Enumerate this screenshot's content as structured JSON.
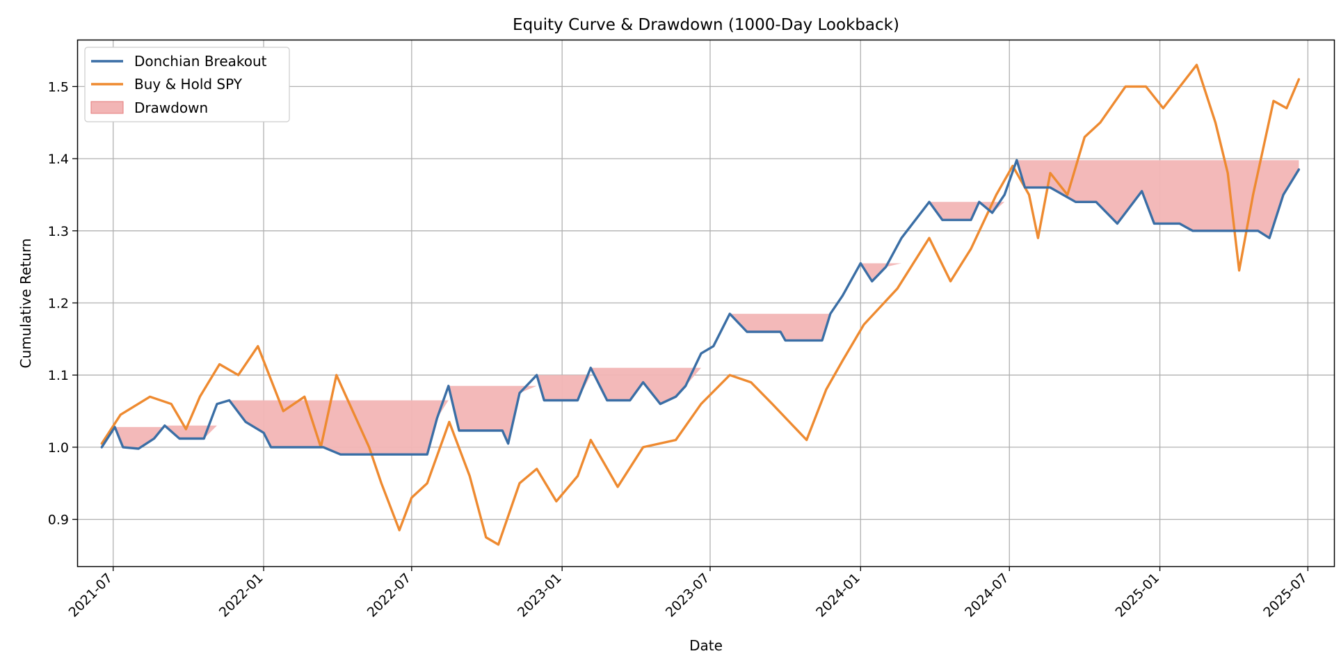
{
  "chart_data": {
    "type": "line",
    "title": "Equity Curve & Drawdown (1000-Day Lookback)",
    "xlabel": "Date",
    "ylabel": "Cumulative Return",
    "xlim": [
      "2021-05-18",
      "2025-08-02"
    ],
    "ylim": [
      0.835,
      1.565
    ],
    "x_ticks": [
      "2021-07",
      "2022-01",
      "2022-07",
      "2023-01",
      "2023-07",
      "2024-01",
      "2024-07",
      "2025-01",
      "2025-07"
    ],
    "y_ticks": [
      0.9,
      1.0,
      1.1,
      1.2,
      1.3,
      1.4,
      1.5
    ],
    "y_tick_labels": [
      "0.9",
      "1.0",
      "1.1",
      "1.2",
      "1.3",
      "1.4",
      "1.5"
    ],
    "grid": true,
    "legend_position": "top-left",
    "legend": [
      "Donchian Breakout",
      "Buy & Hold SPY",
      "Drawdown"
    ],
    "series": [
      {
        "name": "Donchian Breakout",
        "color": "#3a6ea5",
        "points": [
          [
            "2021-06-17",
            1.0
          ],
          [
            "2021-07-03",
            1.028
          ],
          [
            "2021-07-13",
            1.0
          ],
          [
            "2021-08-01",
            0.998
          ],
          [
            "2021-08-20",
            1.012
          ],
          [
            "2021-09-02",
            1.03
          ],
          [
            "2021-09-20",
            1.012
          ],
          [
            "2021-10-20",
            1.012
          ],
          [
            "2021-11-05",
            1.06
          ],
          [
            "2021-11-20",
            1.065
          ],
          [
            "2021-12-10",
            1.035
          ],
          [
            "2022-01-01",
            1.02
          ],
          [
            "2022-01-10",
            1.0
          ],
          [
            "2022-03-15",
            1.0
          ],
          [
            "2022-04-05",
            0.99
          ],
          [
            "2022-07-20",
            0.99
          ],
          [
            "2022-08-01",
            1.04
          ],
          [
            "2022-08-15",
            1.085
          ],
          [
            "2022-08-28",
            1.023
          ],
          [
            "2022-10-20",
            1.023
          ],
          [
            "2022-10-27",
            1.005
          ],
          [
            "2022-11-10",
            1.075
          ],
          [
            "2022-12-01",
            1.1
          ],
          [
            "2022-12-10",
            1.065
          ],
          [
            "2023-01-20",
            1.065
          ],
          [
            "2023-02-05",
            1.11
          ],
          [
            "2023-02-25",
            1.065
          ],
          [
            "2023-03-25",
            1.065
          ],
          [
            "2023-04-10",
            1.09
          ],
          [
            "2023-05-01",
            1.06
          ],
          [
            "2023-05-20",
            1.07
          ],
          [
            "2023-06-01",
            1.085
          ],
          [
            "2023-06-20",
            1.13
          ],
          [
            "2023-07-05",
            1.14
          ],
          [
            "2023-07-25",
            1.185
          ],
          [
            "2023-08-15",
            1.16
          ],
          [
            "2023-09-25",
            1.16
          ],
          [
            "2023-10-01",
            1.148
          ],
          [
            "2023-11-15",
            1.148
          ],
          [
            "2023-11-25",
            1.185
          ],
          [
            "2023-12-10",
            1.21
          ],
          [
            "2024-01-01",
            1.255
          ],
          [
            "2024-01-15",
            1.23
          ],
          [
            "2024-02-01",
            1.25
          ],
          [
            "2024-02-20",
            1.29
          ],
          [
            "2024-03-25",
            1.34
          ],
          [
            "2024-04-10",
            1.315
          ],
          [
            "2024-05-15",
            1.315
          ],
          [
            "2024-05-25",
            1.34
          ],
          [
            "2024-06-10",
            1.325
          ],
          [
            "2024-06-25",
            1.35
          ],
          [
            "2024-07-10",
            1.398
          ],
          [
            "2024-07-20",
            1.36
          ],
          [
            "2024-08-20",
            1.36
          ],
          [
            "2024-09-20",
            1.34
          ],
          [
            "2024-10-15",
            1.34
          ],
          [
            "2024-11-10",
            1.31
          ],
          [
            "2024-12-10",
            1.355
          ],
          [
            "2024-12-25",
            1.31
          ],
          [
            "2025-01-25",
            1.31
          ],
          [
            "2025-02-10",
            1.3
          ],
          [
            "2025-03-10",
            1.3
          ],
          [
            "2025-05-01",
            1.3
          ],
          [
            "2025-05-15",
            1.29
          ],
          [
            "2025-06-01",
            1.35
          ],
          [
            "2025-06-20",
            1.385
          ]
        ]
      },
      {
        "name": "Buy & Hold SPY",
        "color": "#ee8a30",
        "points": [
          [
            "2021-06-17",
            1.005
          ],
          [
            "2021-07-10",
            1.045
          ],
          [
            "2021-08-15",
            1.07
          ],
          [
            "2021-09-10",
            1.06
          ],
          [
            "2021-09-28",
            1.025
          ],
          [
            "2021-10-15",
            1.07
          ],
          [
            "2021-11-08",
            1.115
          ],
          [
            "2021-12-01",
            1.1
          ],
          [
            "2021-12-25",
            1.14
          ],
          [
            "2022-01-25",
            1.05
          ],
          [
            "2022-02-20",
            1.07
          ],
          [
            "2022-03-12",
            1.0
          ],
          [
            "2022-03-31",
            1.1
          ],
          [
            "2022-05-10",
            1.0
          ],
          [
            "2022-05-25",
            0.95
          ],
          [
            "2022-06-16",
            0.885
          ],
          [
            "2022-07-01",
            0.93
          ],
          [
            "2022-07-20",
            0.95
          ],
          [
            "2022-08-16",
            1.035
          ],
          [
            "2022-09-10",
            0.96
          ],
          [
            "2022-09-30",
            0.875
          ],
          [
            "2022-10-15",
            0.865
          ],
          [
            "2022-11-10",
            0.95
          ],
          [
            "2022-12-01",
            0.97
          ],
          [
            "2022-12-25",
            0.925
          ],
          [
            "2023-01-20",
            0.96
          ],
          [
            "2023-02-05",
            1.01
          ],
          [
            "2023-03-10",
            0.945
          ],
          [
            "2023-04-10",
            1.0
          ],
          [
            "2023-05-20",
            1.01
          ],
          [
            "2023-06-20",
            1.06
          ],
          [
            "2023-07-25",
            1.1
          ],
          [
            "2023-08-20",
            1.09
          ],
          [
            "2023-09-15",
            1.06
          ],
          [
            "2023-10-27",
            1.01
          ],
          [
            "2023-11-20",
            1.08
          ],
          [
            "2023-12-10",
            1.12
          ],
          [
            "2024-01-05",
            1.17
          ],
          [
            "2024-02-15",
            1.22
          ],
          [
            "2024-03-25",
            1.29
          ],
          [
            "2024-04-20",
            1.23
          ],
          [
            "2024-05-15",
            1.275
          ],
          [
            "2024-06-15",
            1.35
          ],
          [
            "2024-07-05",
            1.39
          ],
          [
            "2024-07-25",
            1.35
          ],
          [
            "2024-08-05",
            1.29
          ],
          [
            "2024-08-20",
            1.38
          ],
          [
            "2024-09-10",
            1.35
          ],
          [
            "2024-10-01",
            1.43
          ],
          [
            "2024-10-20",
            1.45
          ],
          [
            "2024-11-20",
            1.5
          ],
          [
            "2024-12-15",
            1.5
          ],
          [
            "2025-01-05",
            1.47
          ],
          [
            "2025-02-15",
            1.53
          ],
          [
            "2025-03-10",
            1.45
          ],
          [
            "2025-03-25",
            1.38
          ],
          [
            "2025-04-08",
            1.245
          ],
          [
            "2025-04-25",
            1.35
          ],
          [
            "2025-05-20",
            1.48
          ],
          [
            "2025-06-05",
            1.47
          ],
          [
            "2025-06-20",
            1.51
          ]
        ]
      }
    ],
    "drawdown": {
      "name": "Drawdown",
      "color": "#f2b5b5",
      "edge_color": "#e47a7a"
    }
  }
}
